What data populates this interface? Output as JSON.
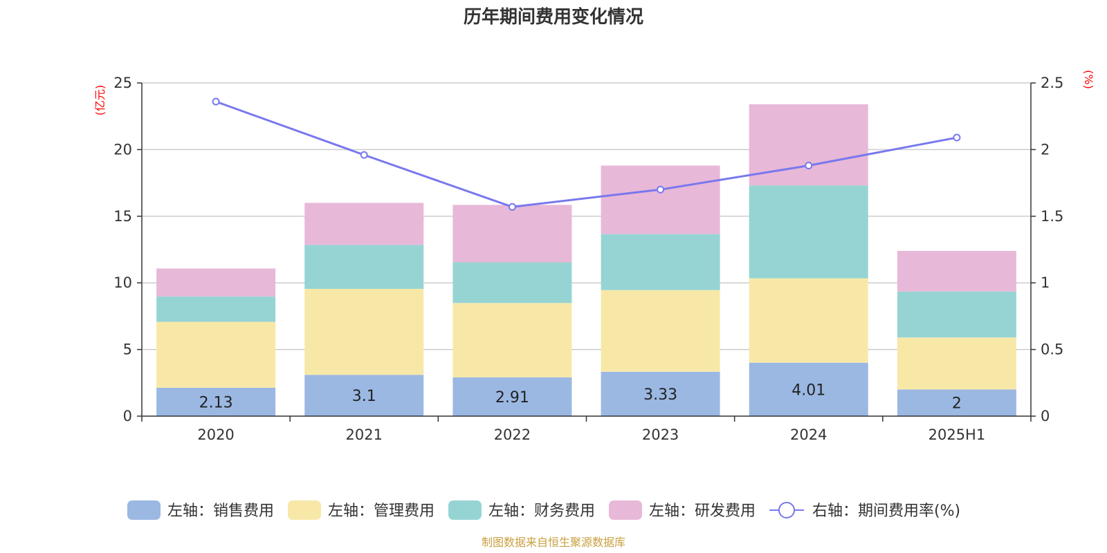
{
  "chart_data": {
    "type": "bar",
    "title": "历年期间费用变化情况",
    "categories": [
      "2020",
      "2021",
      "2022",
      "2023",
      "2024",
      "2025H1"
    ],
    "left_axis": {
      "unit": "(亿元)",
      "ylim": [
        0,
        25
      ],
      "ticks": [
        "0",
        "5",
        "10",
        "15",
        "20",
        "25"
      ]
    },
    "right_axis": {
      "unit": "(%)",
      "ylim": [
        0,
        2.5
      ],
      "ticks": [
        "0",
        "0.5",
        "1",
        "1.5",
        "2",
        "2.5"
      ]
    },
    "series": [
      {
        "name": "左轴：销售费用",
        "type": "bar",
        "color": "#9bb8e3",
        "values": [
          2.13,
          3.1,
          2.91,
          3.33,
          4.01,
          2
        ],
        "labels": [
          "2.13",
          "3.1",
          "2.91",
          "3.33",
          "4.01",
          "2"
        ]
      },
      {
        "name": "左轴：管理费用",
        "type": "bar",
        "color": "#f8e8a8",
        "values": [
          4.95,
          6.45,
          5.58,
          6.13,
          6.33,
          3.9
        ]
      },
      {
        "name": "左轴：财务费用",
        "type": "bar",
        "color": "#96d4d4",
        "values": [
          1.9,
          3.3,
          3.05,
          4.2,
          6.97,
          3.45
        ]
      },
      {
        "name": "左轴：研发费用",
        "type": "bar",
        "color": "#e8b8d8",
        "values": [
          2.1,
          3.15,
          4.31,
          5.14,
          6.09,
          3.05
        ]
      },
      {
        "name": "右轴：期间费用率(%)",
        "type": "line",
        "axis": "right",
        "color": "#7878ee",
        "values": [
          2.36,
          1.96,
          1.57,
          1.7,
          1.88,
          2.09
        ]
      }
    ],
    "grid": true,
    "legend_position": "bottom"
  },
  "source_note": "制图数据来自恒生聚源数据库"
}
